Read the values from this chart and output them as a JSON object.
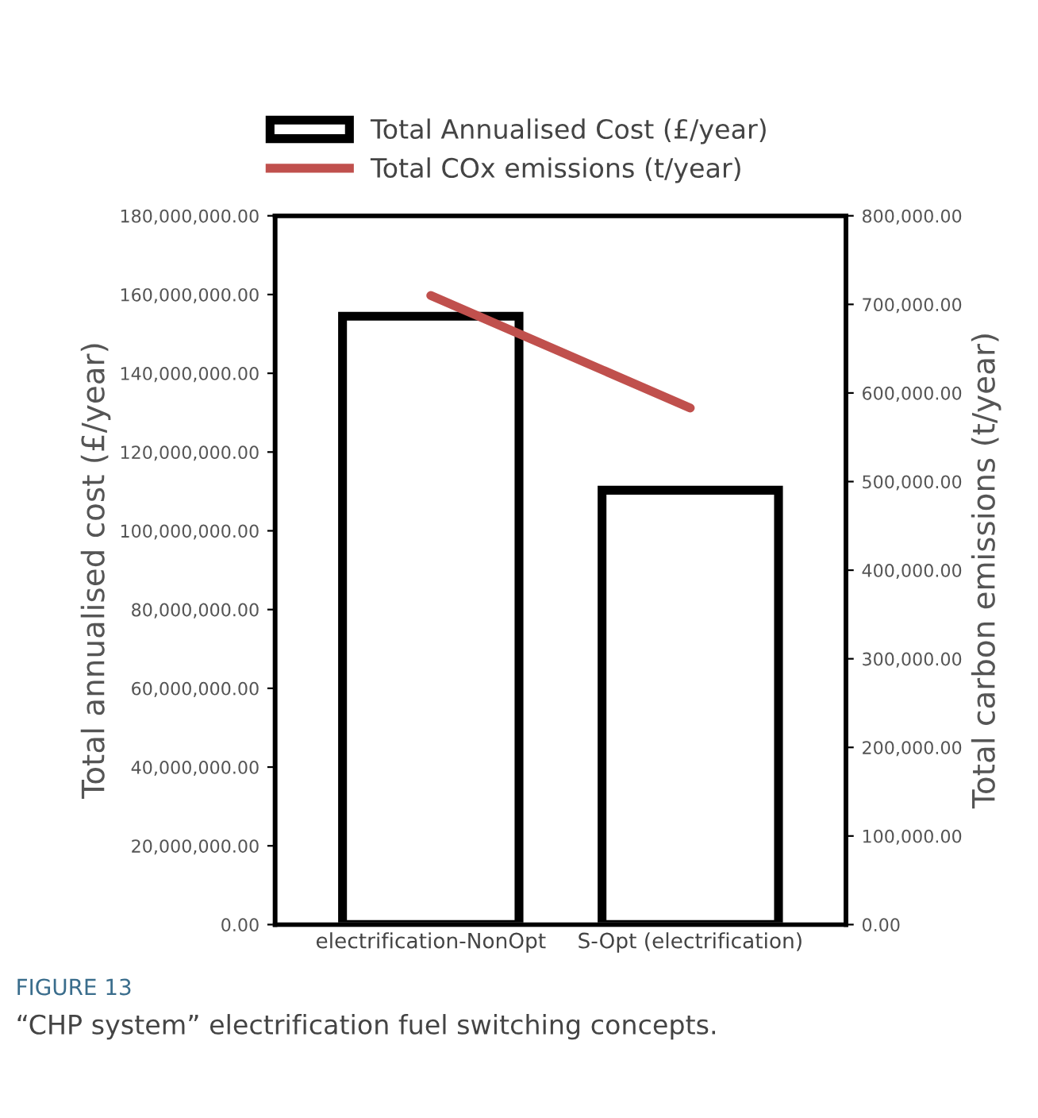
{
  "chart_data": {
    "type": "bar",
    "categories": [
      "electrification-NonOpt",
      "S-Opt (electrification)"
    ],
    "ylabel": "Total annualised cost (£/year)",
    "y2label": "Total carbon emissions (t/year)",
    "series": [
      {
        "name": "Total Annualised Cost (£/year)",
        "color": "#000000",
        "values": [
          154500000,
          110300000
        ]
      },
      {
        "name": "Total COx emissions (t/year)",
        "type": "line",
        "axis": "y2",
        "color": "#c0504d",
        "values": [
          710000,
          583000
        ]
      }
    ],
    "ylim": [
      0,
      180000000
    ],
    "yticks": [
      {
        "value": 0,
        "label": "0.00"
      },
      {
        "value": 20000000,
        "label": "20,000,000.00"
      },
      {
        "value": 40000000,
        "label": "40,000,000.00"
      },
      {
        "value": 60000000,
        "label": "60,000,000.00"
      },
      {
        "value": 80000000,
        "label": "80,000,000.00"
      },
      {
        "value": 100000000,
        "label": "100,000,000.00"
      },
      {
        "value": 120000000,
        "label": "120,000,000.00"
      },
      {
        "value": 140000000,
        "label": "140,000,000.00"
      },
      {
        "value": 160000000,
        "label": "160,000,000.00"
      },
      {
        "value": 180000000,
        "label": "180,000,000.00"
      }
    ],
    "y2lim": [
      0,
      800000
    ],
    "y2ticks": [
      {
        "value": 0,
        "label": "0.00"
      },
      {
        "value": 100000,
        "label": "100,000.00"
      },
      {
        "value": 200000,
        "label": "200,000.00"
      },
      {
        "value": 300000,
        "label": "300,000.00"
      },
      {
        "value": 400000,
        "label": "400,000.00"
      },
      {
        "value": 500000,
        "label": "500,000.00"
      },
      {
        "value": 600000,
        "label": "600,000.00"
      },
      {
        "value": 700000,
        "label": "700,000.00"
      },
      {
        "value": 800000,
        "label": "800,000.00"
      }
    ],
    "legend": "top",
    "grid": false,
    "annotations": [
      "FIGURE 13",
      "“CHP system” electrification fuel switching concepts."
    ]
  }
}
